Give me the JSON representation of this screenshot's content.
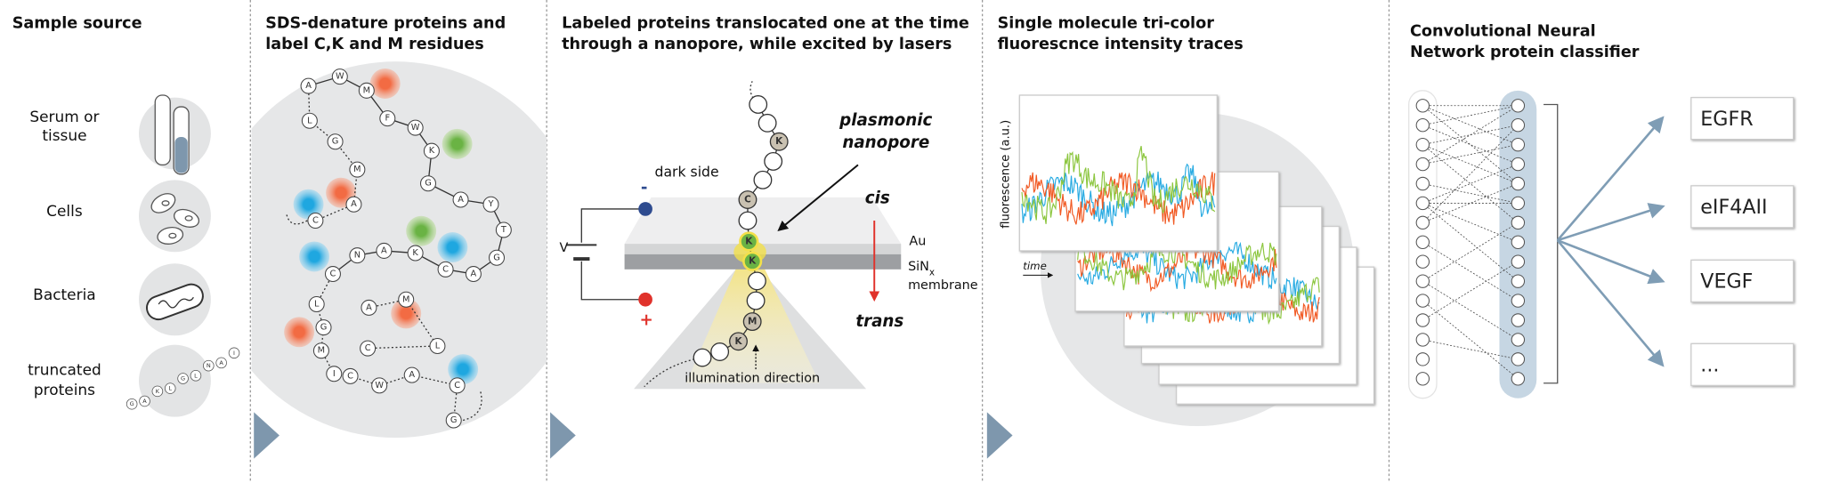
{
  "sample_source": {
    "title": "Sample source",
    "samples": [
      {
        "lines": [
          "Serum or",
          "tissue"
        ]
      },
      {
        "lines": [
          "Cells"
        ]
      },
      {
        "lines": [
          "Bacteria"
        ]
      },
      {
        "lines": [
          "truncated",
          "proteins"
        ]
      }
    ],
    "peptide_letters": [
      "G",
      "A",
      "K",
      "L",
      "G",
      "L",
      "N",
      "A",
      "I"
    ]
  },
  "labeling": {
    "title_lines": [
      "SDS-denature proteins and",
      "label C,K and M residues"
    ],
    "residues": [
      "A",
      "W",
      "M",
      "F",
      "W",
      "K",
      "G",
      "A",
      "Y",
      "T",
      "G",
      "A",
      "C",
      "K",
      "A",
      "N",
      "C",
      "L",
      "G",
      "M",
      "I",
      "C",
      "W",
      "A",
      "C",
      "G",
      "L",
      "G",
      "M",
      "A",
      "C",
      "A",
      "M",
      "C",
      "L"
    ]
  },
  "translocation": {
    "title_lines": [
      "Labeled proteins translocated one at the time",
      "through a nanopore, while excited by lasers"
    ],
    "residues": [
      "K",
      "C",
      "K",
      "K",
      "M",
      "K"
    ],
    "pore_label_lines": [
      "plasmonic",
      "nanopore"
    ],
    "dark_side": "dark side",
    "cis": "cis",
    "trans": "trans",
    "au": "Au",
    "sin": {
      "base": "SiN",
      "subscript": "x"
    },
    "membrane": "membrane",
    "voltage": "V",
    "negative": "-",
    "positive": "+",
    "illumination": "illumination direction"
  },
  "traces": {
    "title_lines": [
      "Single molecule tri-color",
      "fluorescnce intensity traces"
    ],
    "y_label": "fluorescence (a.u.)",
    "x_label": "time"
  },
  "classifier": {
    "title_lines": [
      "Convolutional Neural",
      "Network protein classifier"
    ],
    "outputs": [
      "EGFR",
      "eIF4AII",
      "VEGF",
      "..."
    ]
  }
}
